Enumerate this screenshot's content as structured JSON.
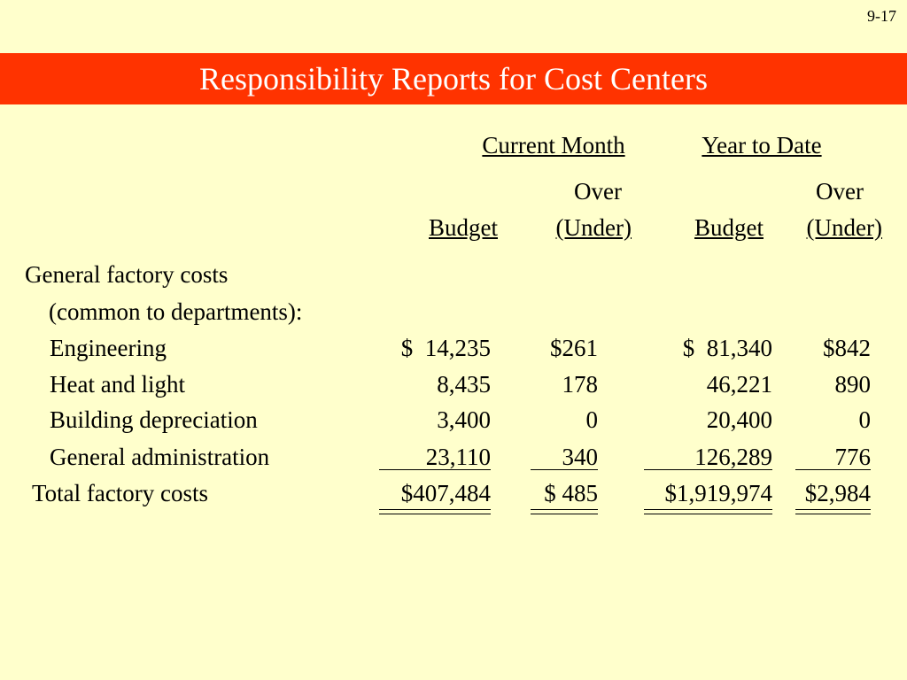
{
  "slide_number": "9-17",
  "title": "Responsibility Reports for Cost Centers",
  "group_headers": {
    "current_month": "Current Month",
    "year_to_date": "Year to Date"
  },
  "column_headers": {
    "over_top_cm": "Over",
    "over_top_ytd": "Over",
    "budget_cm": "Budget",
    "under_cm": "(Under)",
    "budget_ytd": "Budget",
    "under_ytd": "(Under)"
  },
  "section": {
    "line1": "General factory costs",
    "line2": "(common to departments):"
  },
  "rows": [
    {
      "label": "Engineering",
      "budget_cm": "$  14,235",
      "over_cm": "$261",
      "budget_ytd": "$  81,340",
      "over_ytd": "$842"
    },
    {
      "label": "Heat and light",
      "budget_cm": "8,435",
      "over_cm": "178",
      "budget_ytd": "46,221",
      "over_ytd": "890"
    },
    {
      "label": "Building depreciation",
      "budget_cm": "3,400",
      "over_cm": "0",
      "budget_ytd": "20,400",
      "over_ytd": "0"
    },
    {
      "label": "General administration",
      "budget_cm": "23,110",
      "over_cm": "340",
      "budget_ytd": "126,289",
      "over_ytd": "776"
    }
  ],
  "total": {
    "label": "Total factory costs",
    "budget_cm": "$407,484",
    "over_cm": "$ 485",
    "budget_ytd": "$1,919,974",
    "over_ytd": "$2,984"
  }
}
